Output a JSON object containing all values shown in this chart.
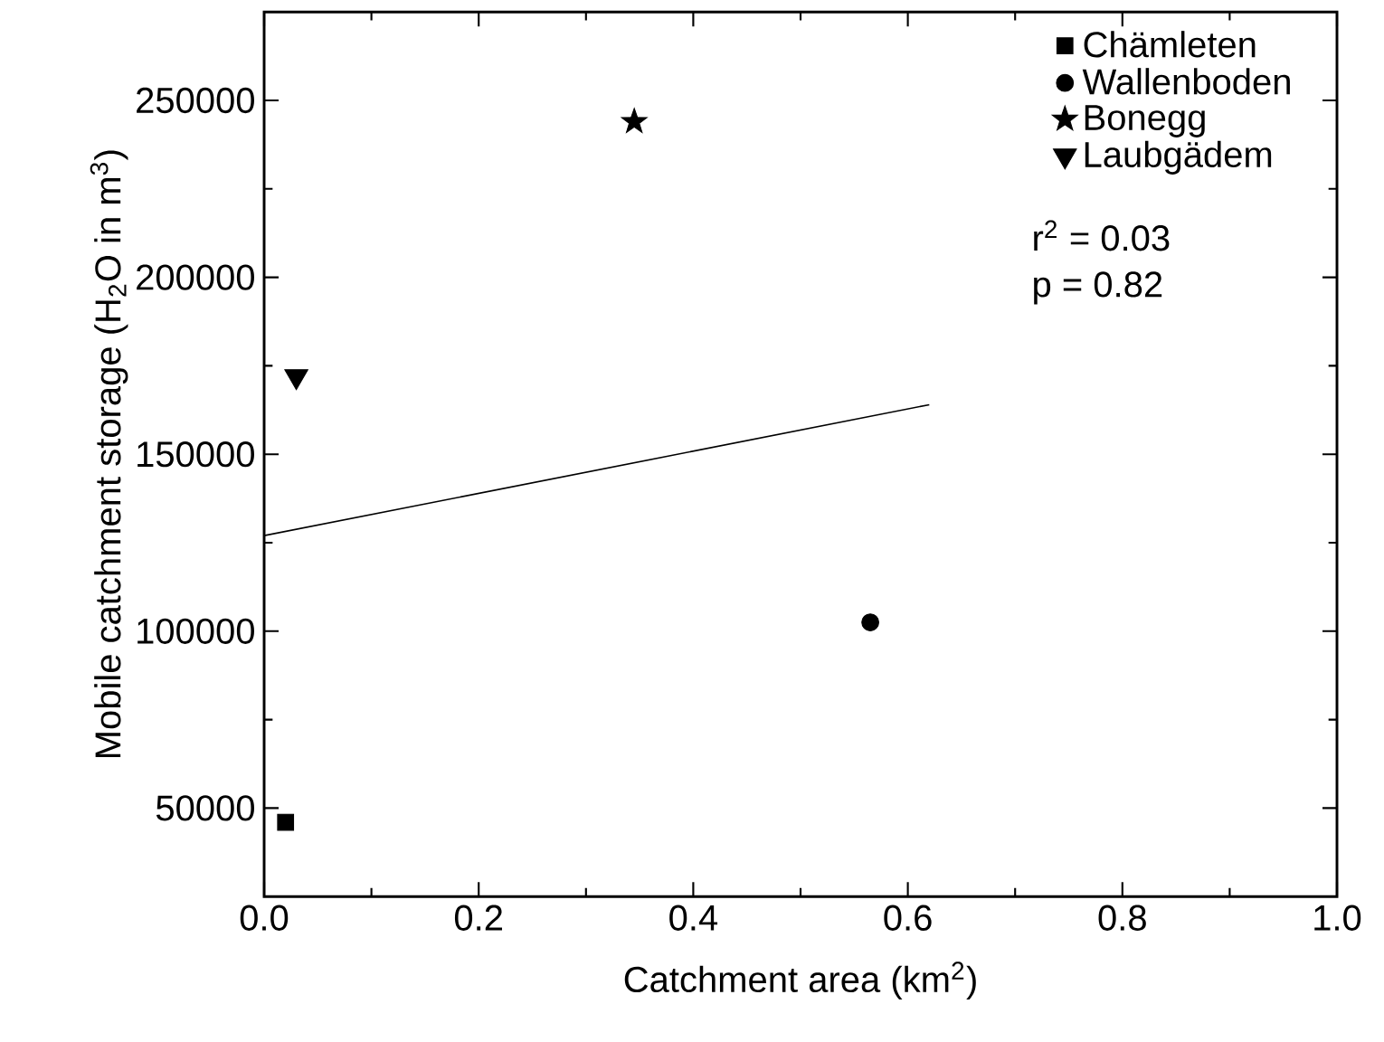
{
  "chart_data": {
    "type": "scatter",
    "xlabel": "Catchment area (km$^{2}$)",
    "ylabel": "Mobile catchment storage (H$_{2}$O in m$^{3}$)",
    "xlim": [
      0,
      1
    ],
    "xticks": [
      {
        "value": 0,
        "label": "0.0"
      },
      {
        "value": 0.2,
        "label": "0.2"
      },
      {
        "value": 0.4,
        "label": "0.4"
      },
      {
        "value": 0.6,
        "label": "0.6"
      },
      {
        "value": 0.8,
        "label": "0.8"
      },
      {
        "value": 1,
        "label": "1.0"
      }
    ],
    "ylim": [
      25000,
      275000
    ],
    "yticks": [
      50000,
      100000,
      150000,
      200000,
      250000
    ],
    "legend": "top right",
    "grid": false,
    "annotations": [
      "r$^{2}$ = 0.03",
      "p = 0.82"
    ],
    "series": [
      {
        "name": "Chämleten",
        "color": "#000000",
        "marker": "square",
        "x": [
          0.02
        ],
        "values": [
          46000
        ]
      },
      {
        "name": "Wallenboden",
        "color": "#000000",
        "marker": "circle",
        "x": [
          0.565
        ],
        "values": [
          102500
        ]
      },
      {
        "name": "Bonegg",
        "color": "#000000",
        "marker": "star",
        "x": [
          0.345
        ],
        "values": [
          244000
        ]
      },
      {
        "name": "Laubgädem",
        "color": "#000000",
        "marker": "triangle-down",
        "x": [
          0.03
        ],
        "values": [
          172000
        ]
      },
      {
        "type": "line",
        "color": "#000000",
        "marker": "none",
        "x": [
          0,
          0.62
        ],
        "values": [
          127000,
          164000
        ]
      }
    ]
  }
}
